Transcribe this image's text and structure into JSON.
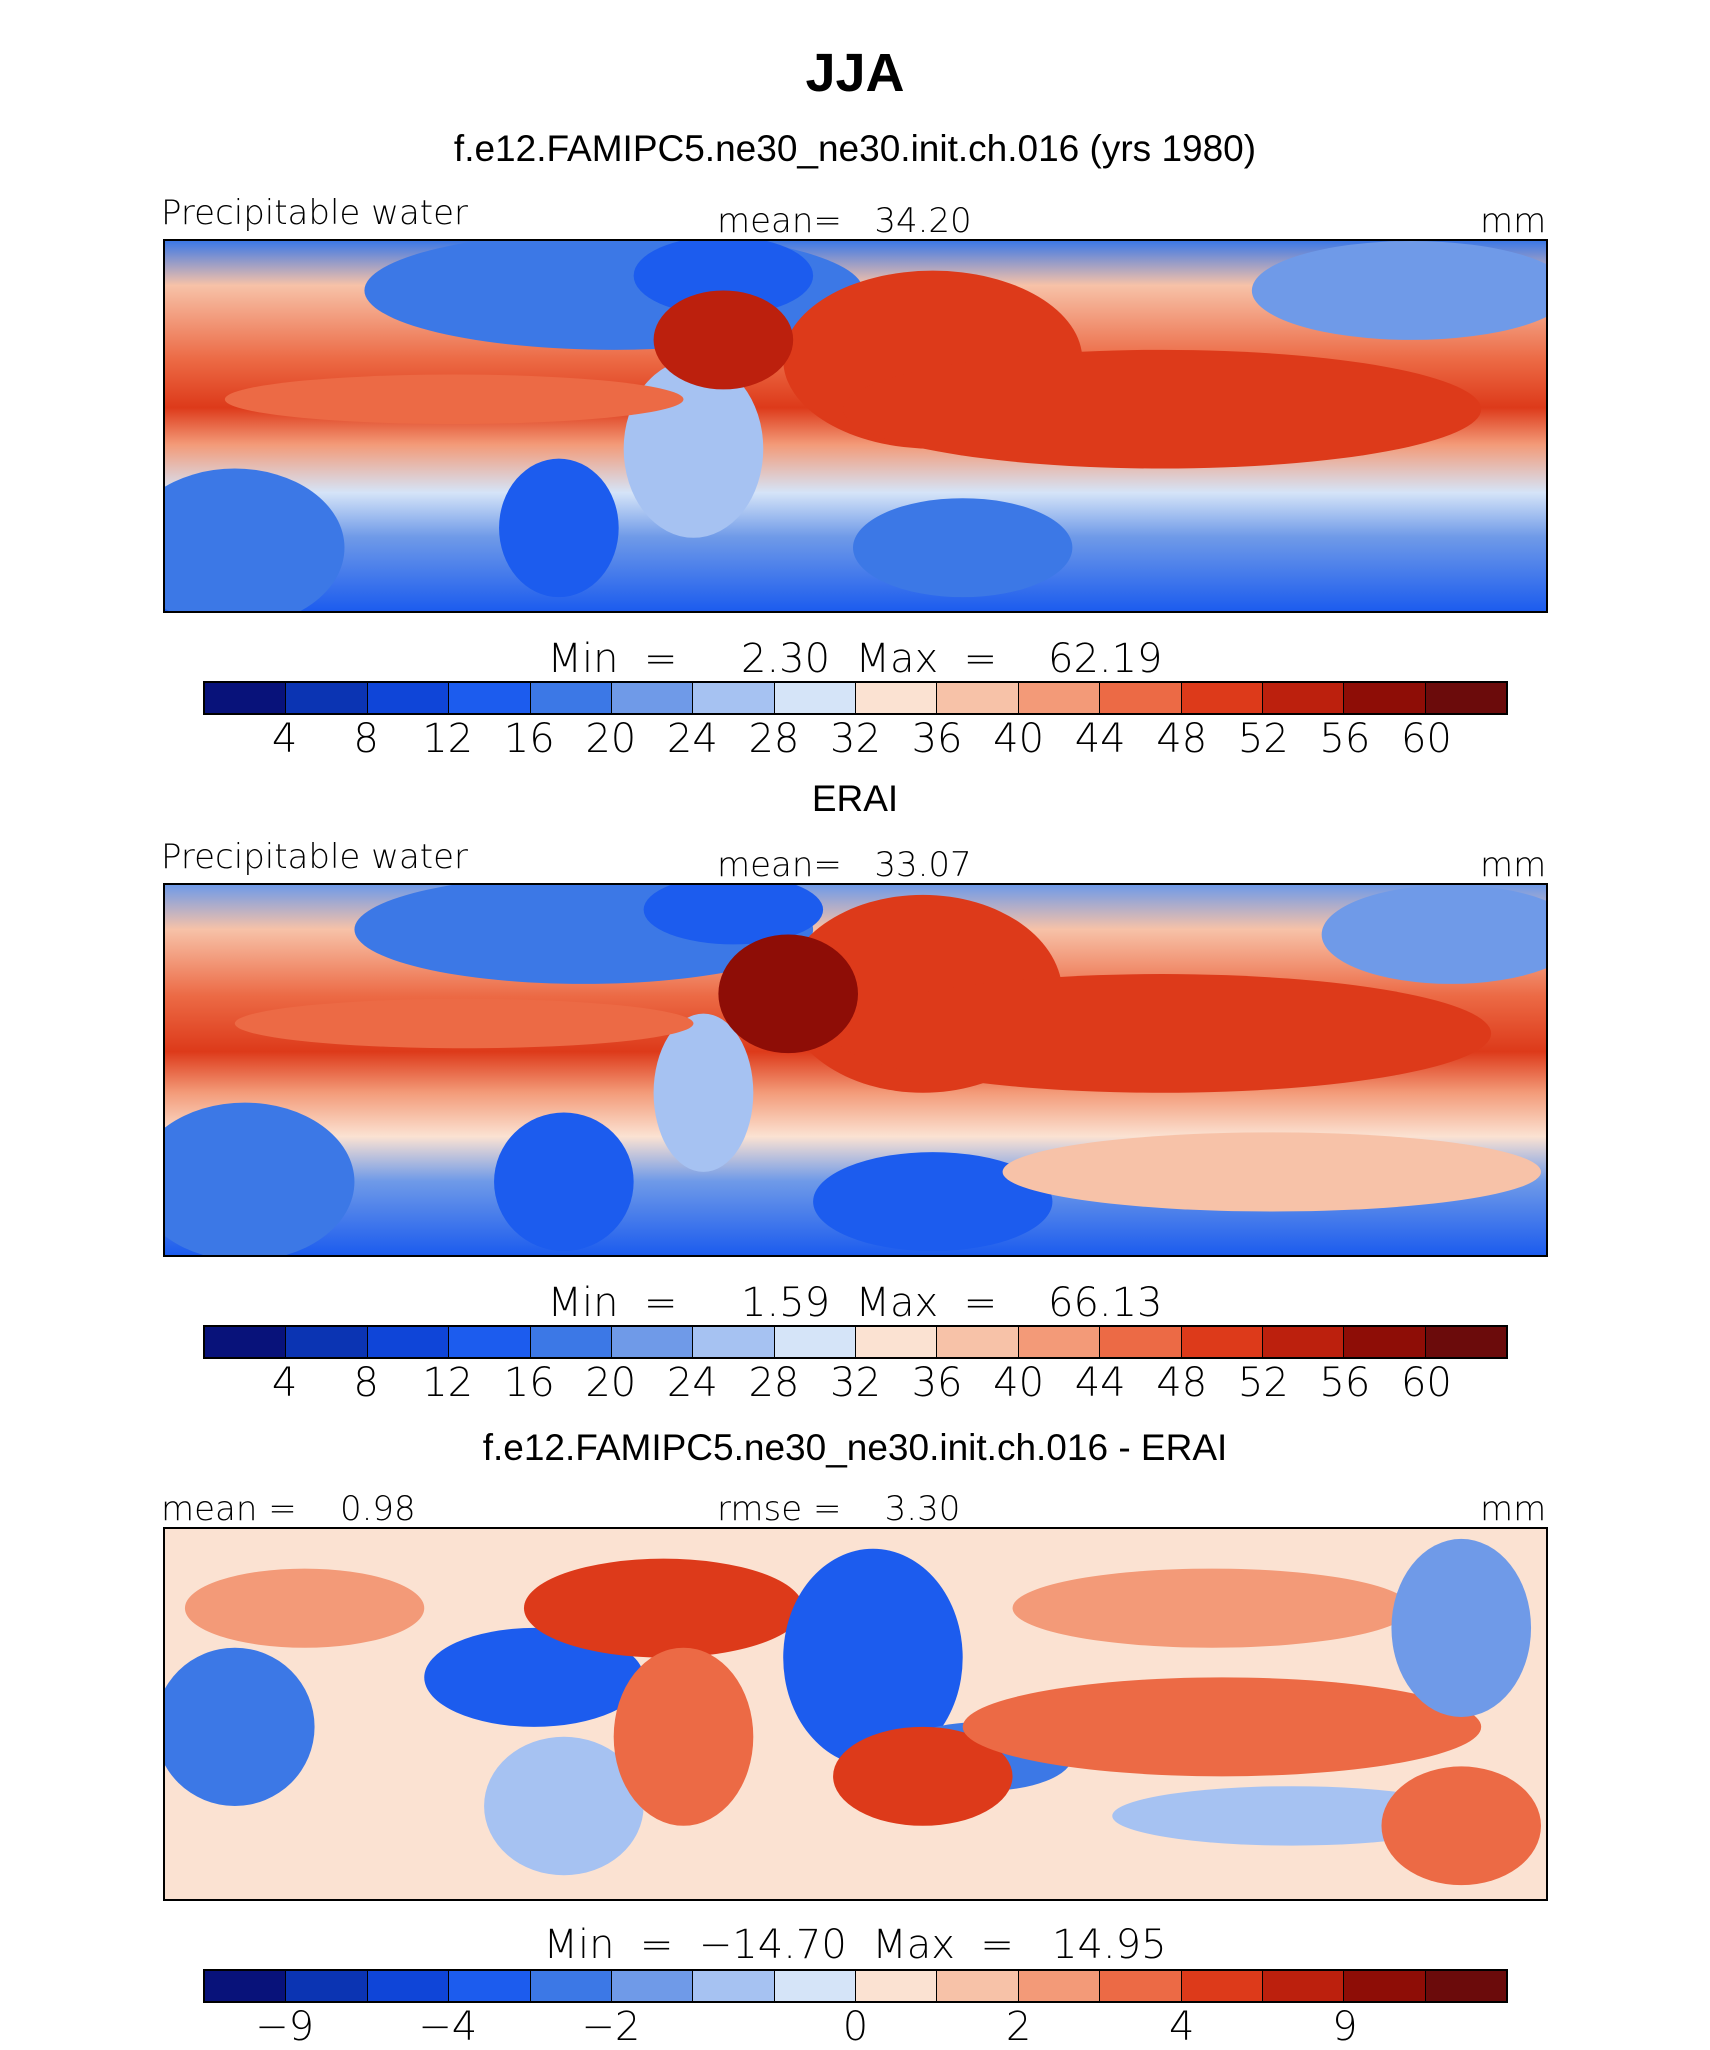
{
  "title": "JJA",
  "colors_abs": [
    "#08127a",
    "#0b34b3",
    "#0f45d8",
    "#1c5cee",
    "#3c78e6",
    "#6f9ae8",
    "#a6c2f2",
    "#d5e4f8",
    "#fbe2d2",
    "#f7c2a8",
    "#f39a78",
    "#ec6a45",
    "#dd3a1a",
    "#bc200d",
    "#8e0d06",
    "#6b0b0b"
  ],
  "colors_diff": [
    "#08127a",
    "#0b34b3",
    "#0f45d8",
    "#1c5cee",
    "#3c78e6",
    "#6f9ae8",
    "#a6c2f2",
    "#d5e4f8",
    "#fbe2d2",
    "#f7c2a8",
    "#f39a78",
    "#ec6a45",
    "#dd3a1a",
    "#bc200d",
    "#8e0d06",
    "#6b0b0b"
  ],
  "panel1": {
    "subtitle": "f.e12.FAMIPC5.ne30_ne30.init.ch.016 (yrs 1980)",
    "left": "Precipitable water",
    "center": "mean=   34.20",
    "right": "mm",
    "minmax": "Min  =     2.30  Max  =    62.19",
    "ticks": [
      "4",
      "8",
      "12",
      "16",
      "20",
      "24",
      "28",
      "32",
      "36",
      "40",
      "44",
      "48",
      "52",
      "56",
      "60"
    ]
  },
  "panel2": {
    "subtitle": "ERAI",
    "left": "Precipitable water",
    "center": "mean=   33.07",
    "right": "mm",
    "minmax": "Min  =     1.59  Max  =    66.13",
    "ticks": [
      "4",
      "8",
      "12",
      "16",
      "20",
      "24",
      "28",
      "32",
      "36",
      "40",
      "44",
      "48",
      "52",
      "56",
      "60"
    ]
  },
  "panel3": {
    "subtitle": "f.e12.FAMIPC5.ne30_ne30.init.ch.016 - ERAI",
    "left": "mean =    0.98",
    "center": "rmse =    3.30",
    "right": "mm",
    "minmax": "Min  =  −14.70  Max  =   14.95",
    "ticks": [
      "−9",
      "−4",
      "−2",
      "0",
      "2",
      "4",
      "9"
    ]
  }
}
